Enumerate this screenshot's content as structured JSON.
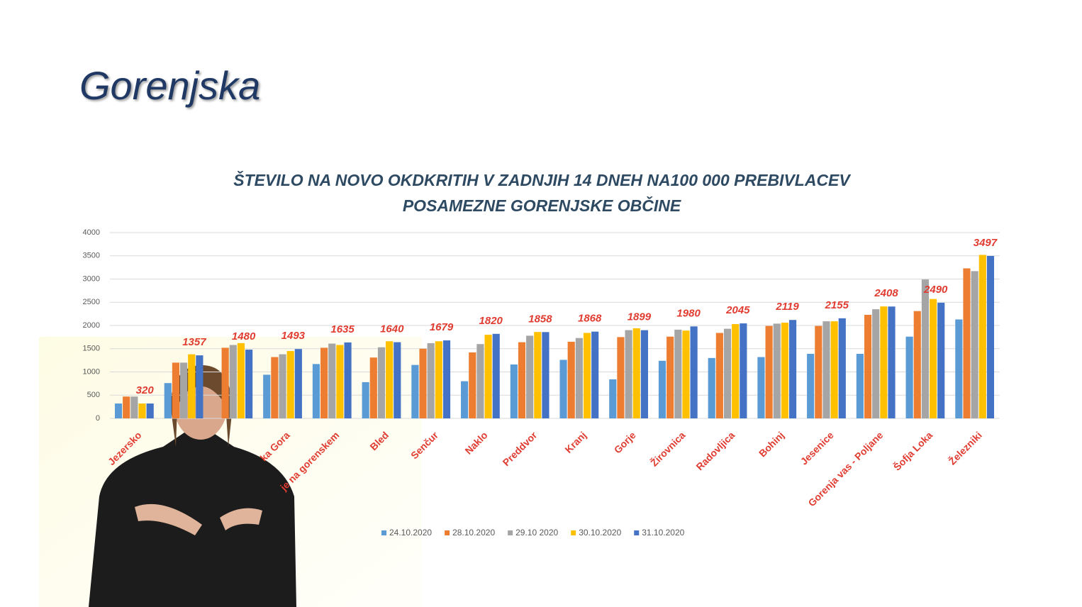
{
  "slide_title": "Gorenjska",
  "chart_data": {
    "type": "bar",
    "title": "ŠTEVILO NA NOVO OKDKRITIH V ZADNJIH 14 DNEH NA100 000 PREBIVLACEV",
    "subtitle": "POSAMEZNE GORENJSKE OBČINE",
    "categories": [
      "Jezersko",
      null,
      null,
      "ka Gora",
      "je na gorenskem",
      "Bled",
      "Senčur",
      "Naklo",
      "Preddvor",
      "Kranj",
      "Gorje",
      "Žirovnica",
      "Radovljica",
      "Bohinj",
      "Jesenice",
      "Gorenja vas - Poljane",
      "Šofja Loka",
      "Železniki"
    ],
    "series": [
      {
        "name": "24.10.2020",
        "color": "#5b9bd5",
        "values": [
          320,
          760,
          null,
          940,
          1170,
          780,
          1150,
          800,
          1160,
          1260,
          840,
          1240,
          1300,
          1320,
          1390,
          1390,
          1760,
          2130
        ]
      },
      {
        "name": "28.10.2020",
        "color": "#ed7d31",
        "values": [
          470,
          1200,
          1520,
          1320,
          1520,
          1310,
          1500,
          1420,
          1640,
          1650,
          1750,
          1760,
          1840,
          1990,
          1990,
          2230,
          2310,
          3230
        ]
      },
      {
        "name": "29.10 2020",
        "color": "#a5a5a5",
        "values": [
          470,
          1200,
          1580,
          1380,
          1610,
          1530,
          1620,
          1600,
          1780,
          1730,
          1900,
          1910,
          1930,
          2040,
          2090,
          2350,
          2990,
          3170
        ]
      },
      {
        "name": "30.10.2020",
        "color": "#ffc000",
        "values": [
          320,
          1380,
          1620,
          1450,
          1580,
          1660,
          1660,
          1800,
          1860,
          1840,
          1940,
          1890,
          2030,
          2060,
          2090,
          2410,
          2570,
          3520
        ]
      },
      {
        "name": "31.10.2020",
        "color": "#4472c4",
        "values": [
          320,
          1357,
          1480,
          1493,
          1635,
          1640,
          1679,
          1820,
          1858,
          1868,
          1899,
          1980,
          2045,
          2119,
          2155,
          2408,
          2490,
          3497
        ]
      }
    ],
    "labeled_series": 4,
    "ylim": [
      0,
      4000
    ],
    "yticks": [
      0,
      500,
      1000,
      1500,
      2000,
      2500,
      3000,
      3500,
      4000
    ],
    "grid": true,
    "legend": "bottom"
  }
}
